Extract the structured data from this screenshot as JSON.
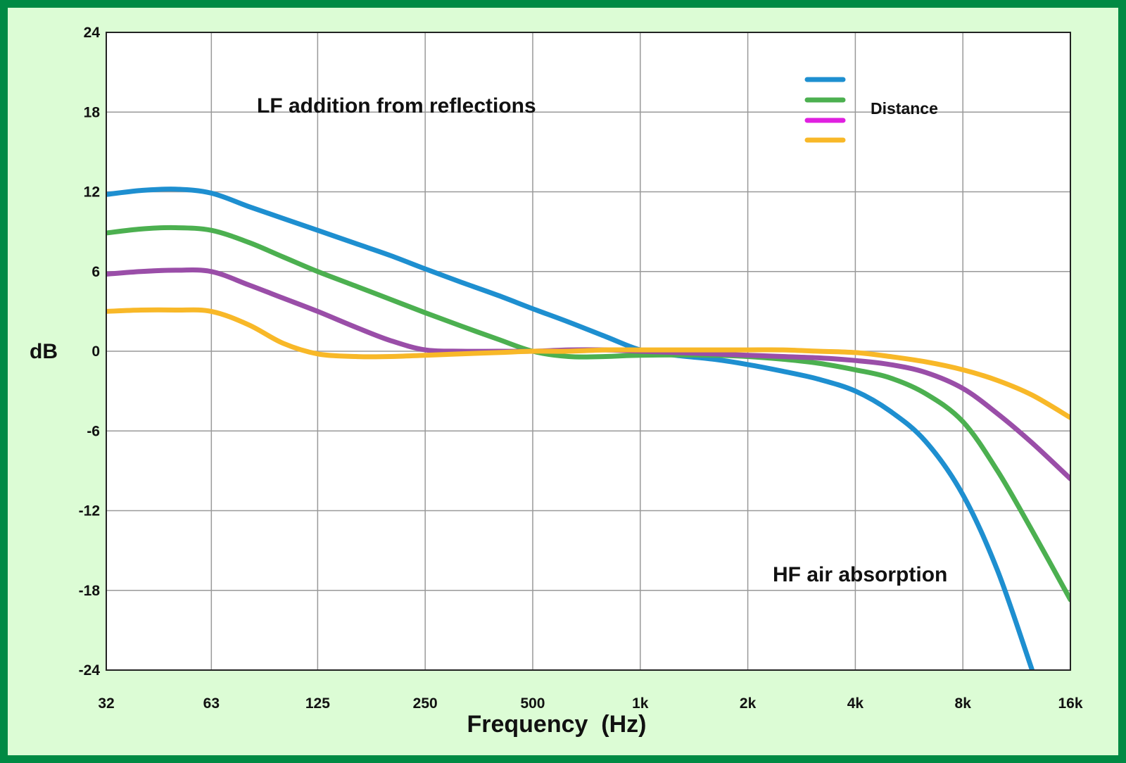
{
  "colors": {
    "border": "#008a44",
    "background": "#dcfcd5",
    "plot_background": "#ffffff",
    "grid": "#999999"
  },
  "chart_data": {
    "type": "line",
    "title": "",
    "xlabel": "Frequency  (Hz)",
    "ylabel": "dB",
    "x_scale": "log",
    "x_ticks": [
      32,
      63,
      125,
      250,
      500,
      1000,
      2000,
      4000,
      8000,
      16000
    ],
    "x_tick_labels": [
      "32",
      "63",
      "125",
      "250",
      "500",
      "1k",
      "2k",
      "4k",
      "8k",
      "16k"
    ],
    "y_ticks": [
      24,
      18,
      12,
      6,
      0,
      -6,
      -12,
      -18,
      -24
    ],
    "y_tick_labels": [
      "24",
      "18",
      "12",
      "6",
      "0",
      "-6",
      "-12",
      "-18",
      "-24"
    ],
    "xlim": [
      32,
      16000
    ],
    "ylim": [
      -24,
      24
    ],
    "grid": true,
    "legend": {
      "placement": "top-right",
      "label": "Distance",
      "colors": [
        "#1e8fd0",
        "#4cb050",
        "#e020e0",
        "#f8b828"
      ]
    },
    "annotations": [
      "LF addition from reflections",
      "HF air absorption"
    ],
    "series": [
      {
        "color": "#1e8fd0",
        "points": [
          [
            32,
            11.8
          ],
          [
            40,
            12.1
          ],
          [
            50,
            12.2
          ],
          [
            63,
            11.9
          ],
          [
            80,
            10.9
          ],
          [
            100,
            10.0
          ],
          [
            125,
            9.1
          ],
          [
            160,
            8.1
          ],
          [
            200,
            7.2
          ],
          [
            250,
            6.2
          ],
          [
            315,
            5.2
          ],
          [
            400,
            4.2
          ],
          [
            500,
            3.2
          ],
          [
            630,
            2.2
          ],
          [
            800,
            1.1
          ],
          [
            1000,
            0.1
          ],
          [
            1250,
            -0.3
          ],
          [
            1600,
            -0.6
          ],
          [
            2000,
            -1.0
          ],
          [
            2500,
            -1.5
          ],
          [
            3150,
            -2.1
          ],
          [
            4000,
            -3.0
          ],
          [
            5000,
            -4.5
          ],
          [
            6300,
            -6.8
          ],
          [
            8000,
            -10.8
          ],
          [
            10000,
            -16.5
          ],
          [
            12500,
            -24.0
          ]
        ]
      },
      {
        "color": "#4cb050",
        "points": [
          [
            32,
            8.9
          ],
          [
            40,
            9.2
          ],
          [
            50,
            9.3
          ],
          [
            63,
            9.1
          ],
          [
            80,
            8.2
          ],
          [
            100,
            7.1
          ],
          [
            125,
            6.0
          ],
          [
            160,
            4.9
          ],
          [
            200,
            3.9
          ],
          [
            250,
            2.9
          ],
          [
            315,
            1.9
          ],
          [
            400,
            0.9
          ],
          [
            500,
            0.0
          ],
          [
            630,
            -0.4
          ],
          [
            800,
            -0.4
          ],
          [
            1000,
            -0.3
          ],
          [
            1600,
            -0.3
          ],
          [
            2000,
            -0.4
          ],
          [
            2500,
            -0.6
          ],
          [
            3150,
            -0.9
          ],
          [
            4000,
            -1.4
          ],
          [
            5000,
            -2.0
          ],
          [
            6300,
            -3.2
          ],
          [
            8000,
            -5.3
          ],
          [
            10000,
            -9.0
          ],
          [
            12500,
            -13.5
          ],
          [
            16000,
            -18.7
          ]
        ]
      },
      {
        "color": "#9a4ea8",
        "points": [
          [
            32,
            5.8
          ],
          [
            40,
            6.0
          ],
          [
            50,
            6.1
          ],
          [
            63,
            6.0
          ],
          [
            80,
            5.0
          ],
          [
            100,
            4.0
          ],
          [
            125,
            3.0
          ],
          [
            160,
            1.8
          ],
          [
            200,
            0.8
          ],
          [
            250,
            0.1
          ],
          [
            315,
            0.0
          ],
          [
            400,
            0.0
          ],
          [
            500,
            0.0
          ],
          [
            630,
            0.1
          ],
          [
            800,
            0.1
          ],
          [
            1000,
            0.0
          ],
          [
            1600,
            -0.2
          ],
          [
            2000,
            -0.3
          ],
          [
            2500,
            -0.4
          ],
          [
            3150,
            -0.5
          ],
          [
            4000,
            -0.7
          ],
          [
            5000,
            -1.0
          ],
          [
            6300,
            -1.6
          ],
          [
            8000,
            -2.8
          ],
          [
            10000,
            -4.7
          ],
          [
            12500,
            -6.9
          ],
          [
            16000,
            -9.6
          ]
        ]
      },
      {
        "color": "#f8b828",
        "points": [
          [
            32,
            3.0
          ],
          [
            40,
            3.1
          ],
          [
            50,
            3.1
          ],
          [
            63,
            3.0
          ],
          [
            80,
            2.0
          ],
          [
            100,
            0.6
          ],
          [
            125,
            -0.2
          ],
          [
            160,
            -0.4
          ],
          [
            200,
            -0.4
          ],
          [
            250,
            -0.3
          ],
          [
            315,
            -0.2
          ],
          [
            400,
            -0.1
          ],
          [
            500,
            0.0
          ],
          [
            630,
            0.0
          ],
          [
            800,
            0.1
          ],
          [
            1000,
            0.1
          ],
          [
            1600,
            0.1
          ],
          [
            2000,
            0.1
          ],
          [
            2500,
            0.1
          ],
          [
            3150,
            0.0
          ],
          [
            4000,
            -0.1
          ],
          [
            5000,
            -0.4
          ],
          [
            6300,
            -0.8
          ],
          [
            8000,
            -1.4
          ],
          [
            10000,
            -2.2
          ],
          [
            12500,
            -3.3
          ],
          [
            16000,
            -5.0
          ]
        ]
      }
    ]
  }
}
